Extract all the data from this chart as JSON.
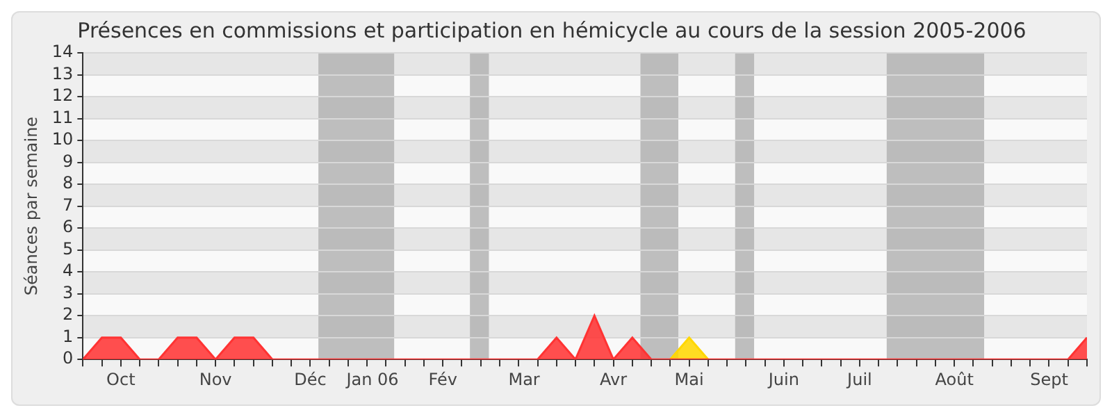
{
  "chart_data": {
    "type": "area",
    "title": "Présences en commissions et participation en hémicycle au cours de la session 2005-2006",
    "ylabel": "Séances par semaine",
    "x": [
      "2005-09-26",
      "2005-10-03",
      "2005-10-10",
      "2005-10-17",
      "2005-10-24",
      "2005-10-31",
      "2005-11-07",
      "2005-11-14",
      "2005-11-21",
      "2005-11-28",
      "2005-12-05",
      "2005-12-12",
      "2005-12-19",
      "2005-12-26",
      "2006-01-02",
      "2006-01-09",
      "2006-01-16",
      "2006-01-23",
      "2006-01-30",
      "2006-02-06",
      "2006-02-13",
      "2006-02-20",
      "2006-02-27",
      "2006-03-06",
      "2006-03-13",
      "2006-03-20",
      "2006-03-27",
      "2006-04-03",
      "2006-04-10",
      "2006-04-17",
      "2006-04-24",
      "2006-05-01",
      "2006-05-08",
      "2006-05-15",
      "2006-05-22",
      "2006-05-29",
      "2006-06-05",
      "2006-06-12",
      "2006-06-19",
      "2006-06-26",
      "2006-07-03",
      "2006-07-10",
      "2006-07-17",
      "2006-07-24",
      "2006-07-31",
      "2006-08-07",
      "2006-08-14",
      "2006-08-21",
      "2006-08-28",
      "2006-09-04",
      "2006-09-11",
      "2006-09-18",
      "2006-09-25",
      "2006-10-02"
    ],
    "series": [
      {
        "color": "#ff3333",
        "values": [
          0,
          1,
          1,
          0,
          0,
          1,
          1,
          0,
          1,
          1,
          0,
          0,
          0,
          0,
          0,
          0,
          0,
          0,
          0,
          0,
          0,
          0,
          0,
          0,
          0,
          1,
          0,
          2,
          0,
          1,
          0,
          0,
          0,
          0,
          0,
          0,
          0,
          0,
          0,
          0,
          0,
          0,
          0,
          0,
          0,
          0,
          0,
          0,
          0,
          0,
          0,
          0,
          0,
          1
        ]
      },
      {
        "color": "#ffd700",
        "values": [
          null,
          null,
          null,
          null,
          null,
          null,
          null,
          null,
          null,
          null,
          null,
          null,
          null,
          null,
          null,
          null,
          null,
          null,
          null,
          null,
          null,
          null,
          null,
          null,
          null,
          null,
          null,
          null,
          null,
          null,
          null,
          0,
          1,
          0,
          null,
          null,
          null,
          null,
          null,
          null,
          null,
          null,
          null,
          null,
          null,
          null,
          null,
          null,
          null,
          null,
          null,
          null,
          null,
          null
        ]
      }
    ],
    "xlim": [
      "2005-09-26",
      "2006-10-02"
    ],
    "xticks": [
      {
        "value": "2005-10-10",
        "label": "Oct"
      },
      {
        "value": "2005-11-14",
        "label": "Nov"
      },
      {
        "value": "2005-12-19",
        "label": "Déc"
      },
      {
        "value": "2006-01-11",
        "label": "Jan 06"
      },
      {
        "value": "2006-02-06",
        "label": "Fév"
      },
      {
        "value": "2006-03-08",
        "label": "Mar"
      },
      {
        "value": "2006-04-10",
        "label": "Avr"
      },
      {
        "value": "2006-05-08",
        "label": "Mai"
      },
      {
        "value": "2006-06-12",
        "label": "Juin"
      },
      {
        "value": "2006-07-10",
        "label": "Juil"
      },
      {
        "value": "2006-08-14",
        "label": "Août"
      },
      {
        "value": "2006-09-18",
        "label": "Sept"
      }
    ],
    "ylim": [
      0,
      14
    ],
    "yticks": [
      0,
      1,
      2,
      3,
      4,
      5,
      6,
      7,
      8,
      9,
      10,
      11,
      12,
      13,
      14
    ],
    "bands": [
      {
        "axis": "x",
        "from": "2005-12-22",
        "to": "2006-01-19",
        "color": "#b4b4b4"
      },
      {
        "axis": "x",
        "from": "2006-02-16",
        "to": "2006-02-23",
        "color": "#b4b4b4"
      },
      {
        "axis": "x",
        "from": "2006-04-20",
        "to": "2006-05-04",
        "color": "#b4b4b4"
      },
      {
        "axis": "x",
        "from": "2006-05-25",
        "to": "2006-06-01",
        "color": "#b4b4b4"
      },
      {
        "axis": "x",
        "from": "2006-07-20",
        "to": "2006-08-25",
        "color": "#b4b4b4"
      }
    ],
    "grid": "y",
    "legend": false
  }
}
